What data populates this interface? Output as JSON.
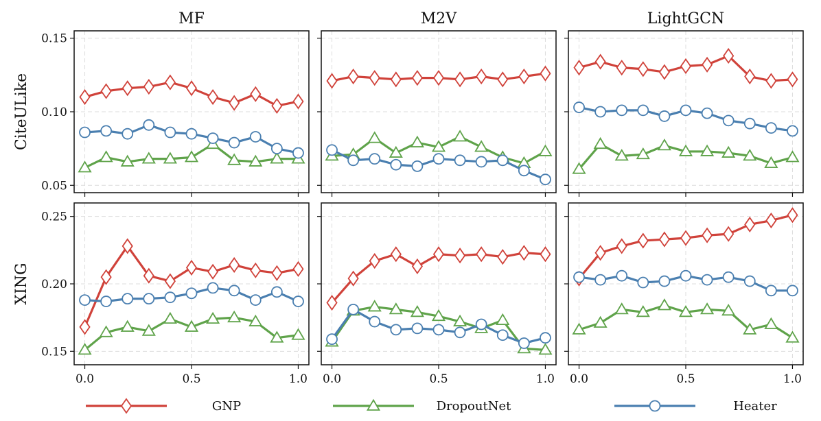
{
  "chart_data": {
    "type": "line",
    "x": [
      0.0,
      0.1,
      0.2,
      0.3,
      0.4,
      0.5,
      0.6,
      0.7,
      0.8,
      0.9,
      1.0
    ],
    "columns": [
      "MF",
      "M2V",
      "LightGCN"
    ],
    "rows": [
      {
        "label": "CiteULike",
        "ylim": [
          0.045,
          0.155
        ],
        "yticks": [
          0.05,
          0.1,
          0.15
        ],
        "ytick_labels": [
          "0.05",
          "0.10",
          "0.15"
        ]
      },
      {
        "label": "XING",
        "ylim": [
          0.14,
          0.26
        ],
        "yticks": [
          0.15,
          0.2,
          0.25
        ],
        "ytick_labels": [
          "0.15",
          "0.20",
          "0.25"
        ]
      }
    ],
    "xticks": [
      0.0,
      0.5,
      1.0
    ],
    "xtick_labels": [
      "0.0",
      "0.5",
      "1.0"
    ],
    "legend": [
      {
        "name": "GNP",
        "color": "#d0423a",
        "marker": "diamond"
      },
      {
        "name": "DropoutNet",
        "color": "#5fa34a",
        "marker": "triangle"
      },
      {
        "name": "Heater",
        "color": "#4a7fb0",
        "marker": "circle"
      }
    ],
    "legend_position": "bottom",
    "grid": true,
    "panels": [
      {
        "row": 0,
        "col": 0,
        "series": [
          {
            "name": "GNP",
            "values": [
              0.11,
              0.114,
              0.116,
              0.117,
              0.12,
              0.116,
              0.11,
              0.106,
              0.112,
              0.104,
              0.107
            ]
          },
          {
            "name": "DropoutNet",
            "values": [
              0.062,
              0.069,
              0.066,
              0.068,
              0.068,
              0.069,
              0.078,
              0.067,
              0.066,
              0.068,
              0.068
            ]
          },
          {
            "name": "Heater",
            "values": [
              0.086,
              0.087,
              0.085,
              0.091,
              0.086,
              0.085,
              0.082,
              0.079,
              0.083,
              0.075,
              0.072
            ]
          }
        ]
      },
      {
        "row": 0,
        "col": 1,
        "series": [
          {
            "name": "GNP",
            "values": [
              0.121,
              0.124,
              0.123,
              0.122,
              0.123,
              0.123,
              0.122,
              0.124,
              0.122,
              0.124,
              0.126
            ]
          },
          {
            "name": "DropoutNet",
            "values": [
              0.07,
              0.071,
              0.082,
              0.072,
              0.079,
              0.076,
              0.083,
              0.076,
              0.069,
              0.065,
              0.073
            ]
          },
          {
            "name": "Heater",
            "values": [
              0.074,
              0.067,
              0.068,
              0.064,
              0.063,
              0.068,
              0.067,
              0.066,
              0.067,
              0.06,
              0.054
            ]
          }
        ]
      },
      {
        "row": 0,
        "col": 2,
        "series": [
          {
            "name": "GNP",
            "values": [
              0.13,
              0.134,
              0.13,
              0.129,
              0.127,
              0.131,
              0.132,
              0.138,
              0.124,
              0.121,
              0.122
            ]
          },
          {
            "name": "DropoutNet",
            "values": [
              0.061,
              0.078,
              0.07,
              0.071,
              0.077,
              0.073,
              0.073,
              0.072,
              0.07,
              0.065,
              0.069
            ]
          },
          {
            "name": "Heater",
            "values": [
              0.103,
              0.1,
              0.101,
              0.101,
              0.097,
              0.101,
              0.099,
              0.094,
              0.092,
              0.089,
              0.087
            ]
          }
        ]
      },
      {
        "row": 1,
        "col": 0,
        "series": [
          {
            "name": "GNP",
            "values": [
              0.168,
              0.205,
              0.228,
              0.206,
              0.202,
              0.212,
              0.209,
              0.214,
              0.21,
              0.208,
              0.211
            ]
          },
          {
            "name": "DropoutNet",
            "values": [
              0.151,
              0.164,
              0.168,
              0.165,
              0.174,
              0.168,
              0.174,
              0.175,
              0.172,
              0.16,
              0.162
            ]
          },
          {
            "name": "Heater",
            "values": [
              0.188,
              0.187,
              0.189,
              0.189,
              0.19,
              0.193,
              0.197,
              0.195,
              0.188,
              0.194,
              0.187
            ]
          }
        ]
      },
      {
        "row": 1,
        "col": 1,
        "series": [
          {
            "name": "GNP",
            "values": [
              0.186,
              0.204,
              0.217,
              0.222,
              0.213,
              0.222,
              0.221,
              0.222,
              0.22,
              0.223,
              0.222
            ]
          },
          {
            "name": "DropoutNet",
            "values": [
              0.157,
              0.18,
              0.183,
              0.181,
              0.179,
              0.176,
              0.172,
              0.167,
              0.173,
              0.152,
              0.151
            ]
          },
          {
            "name": "Heater",
            "values": [
              0.159,
              0.181,
              0.172,
              0.166,
              0.167,
              0.166,
              0.164,
              0.17,
              0.162,
              0.156,
              0.16
            ]
          }
        ]
      },
      {
        "row": 1,
        "col": 2,
        "series": [
          {
            "name": "GNP",
            "values": [
              0.204,
              0.223,
              0.228,
              0.232,
              0.233,
              0.234,
              0.236,
              0.237,
              0.244,
              0.247,
              0.251
            ]
          },
          {
            "name": "DropoutNet",
            "values": [
              0.166,
              0.171,
              0.181,
              0.179,
              0.184,
              0.179,
              0.181,
              0.18,
              0.166,
              0.17,
              0.16
            ]
          },
          {
            "name": "Heater",
            "values": [
              0.205,
              0.203,
              0.206,
              0.201,
              0.202,
              0.206,
              0.203,
              0.205,
              0.202,
              0.195,
              0.195
            ]
          }
        ]
      }
    ]
  }
}
